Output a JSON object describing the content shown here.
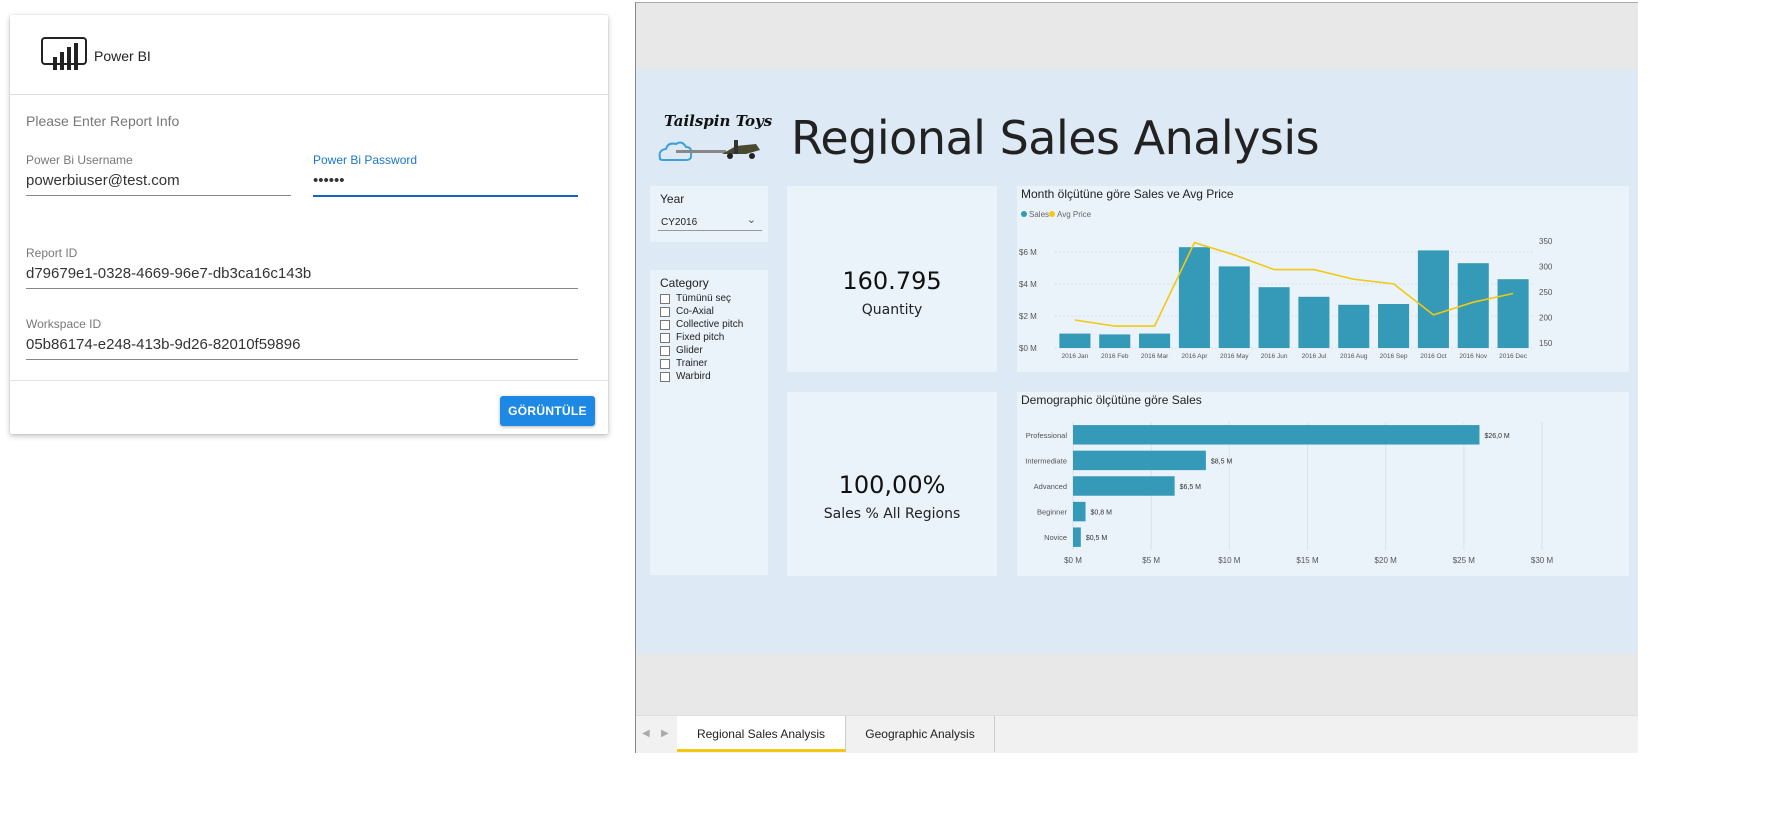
{
  "login": {
    "brand": "Power BI",
    "subtitle": "Please Enter Report Info",
    "username_label": "Power Bi Username",
    "username_value": "powerbiuser@test.com",
    "password_label": "Power Bi Password",
    "password_value": "••••••",
    "report_id_label": "Report ID",
    "report_id_value": "d79679e1-0328-4669-96e7-db3ca16c143b",
    "workspace_id_label": "Workspace ID",
    "workspace_id_value": "05b86174-e248-413b-9d26-82010f59896",
    "view_button": "GÖRÜNTÜLE"
  },
  "report": {
    "logo_text": "Tailspin Toys",
    "title": "Regional Sales Analysis",
    "year_slicer": {
      "title": "Year",
      "selected": "CY2016"
    },
    "category_slicer": {
      "title": "Category",
      "items": [
        "Tümünü seç",
        "Co-Axial",
        "Collective pitch",
        "Fixed pitch",
        "Glider",
        "Trainer",
        "Warbird"
      ]
    },
    "kpi_quantity": {
      "value": "160.795",
      "label": "Quantity"
    },
    "kpi_sales_pct": {
      "value": "100,00%",
      "label": "Sales % All Regions"
    },
    "tabs": [
      "Regional Sales Analysis",
      "Geographic Analysis"
    ],
    "active_tab": 0
  },
  "colors": {
    "bar": "#3599b8",
    "line": "#f2c811",
    "accent": "#1e88e5",
    "canvas": "#dde9f4",
    "tile": "#eaf2fa"
  },
  "chart_data": [
    {
      "type": "bar",
      "title": "Month ölçütüne göre Sales ve Avg Price",
      "legend": [
        "Sales",
        "Avg Price"
      ],
      "legend_position": "top-left",
      "categories": [
        "2016 Jan",
        "2016 Feb",
        "2016 Mar",
        "2016 Apr",
        "2016 May",
        "2016 Jun",
        "2016 Jul",
        "2016 Aug",
        "2016 Sep",
        "2016 Oct",
        "2016 Nov",
        "2016 Dec"
      ],
      "series": [
        {
          "name": "Sales",
          "type": "bar",
          "axis": "left",
          "values": [
            0.9,
            0.85,
            0.9,
            6.3,
            5.1,
            3.8,
            3.2,
            2.7,
            2.75,
            6.1,
            5.3,
            4.3
          ]
        },
        {
          "name": "Avg Price",
          "type": "line",
          "axis": "right",
          "values": [
            195,
            183,
            183,
            347,
            323,
            294,
            294,
            275,
            266,
            205,
            230,
            247
          ]
        }
      ],
      "y_left": {
        "ticks": [
          "$0 M",
          "$2 M",
          "$4 M",
          "$6 M"
        ],
        "ylim": [
          0,
          7
        ]
      },
      "y_right": {
        "ticks": [
          "150",
          "200",
          "250",
          "300",
          "350"
        ],
        "ylim": [
          140,
          360
        ]
      },
      "grid": true
    },
    {
      "type": "bar",
      "orientation": "horizontal",
      "title": "Demographic ölçütüne göre Sales",
      "categories": [
        "Professional",
        "Intermediate",
        "Advanced",
        "Beginner",
        "Novice"
      ],
      "values": [
        26.0,
        8.5,
        6.5,
        0.8,
        0.5
      ],
      "data_labels": [
        "$26,0 M",
        "$8,5 M",
        "$6,5 M",
        "$0,8 M",
        "$0,5 M"
      ],
      "x_ticks": [
        "$0 M",
        "$5 M",
        "$10 M",
        "$15 M",
        "$20 M",
        "$25 M",
        "$30 M"
      ],
      "xlim": [
        0,
        30
      ],
      "grid": true
    }
  ]
}
